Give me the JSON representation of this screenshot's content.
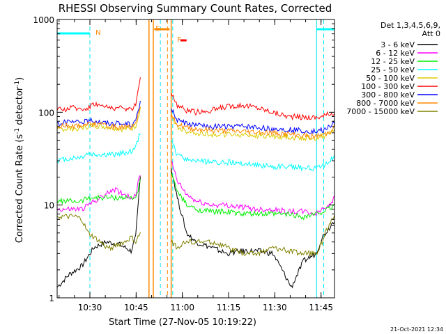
{
  "chart_data": {
    "type": "line",
    "title": "RHESSI Observing Summary Count Rates, Corrected",
    "ylabel_main": "Corrected Count Rate (s",
    "ylabel_sup1": "-1",
    "ylabel_mid": " detector",
    "ylabel_sup2": "-1",
    "ylabel_end": ")",
    "xlabel": "Start Time (27-Nov-05 10:19:22)",
    "yscale": "log",
    "ylim": [
      1,
      1000
    ],
    "xlim_minutes": [
      0,
      90
    ],
    "x_ticks": [
      {
        "label": "10:30",
        "value": 10.63
      },
      {
        "label": "10:45",
        "value": 25.63
      },
      {
        "label": "11:00",
        "value": 40.63
      },
      {
        "label": "11:15",
        "value": 55.63
      },
      {
        "label": "11:30",
        "value": 70.63
      },
      {
        "label": "11:45",
        "value": 85.63
      }
    ],
    "y_ticks": [
      {
        "label": "1",
        "value": 1
      },
      {
        "label": "10",
        "value": 10
      },
      {
        "label": "100",
        "value": 100
      },
      {
        "label": "1000",
        "value": 1000
      }
    ],
    "legend_header": [
      "Det 1,3,4,5,6,9,",
      "Att 0"
    ],
    "legend_placement": "right",
    "footer_date": "21-Oct-2021 12:34",
    "annotations": [
      {
        "label": "N",
        "x": 12.0,
        "color": "#ff8800"
      },
      {
        "label": "S",
        "x": 31.5,
        "color": "#ff8800"
      },
      {
        "label": "F",
        "x": 38.5,
        "color": "#ff8800"
      }
    ],
    "series": [
      {
        "name": "3 - 6 keV",
        "color": "#000000",
        "x": [
          0,
          4,
          8,
          12,
          16,
          20,
          24,
          25.5,
          27,
          29,
          31,
          33,
          35,
          37,
          39,
          42,
          45,
          50,
          55,
          60,
          65,
          70,
          73,
          76,
          80,
          84,
          86,
          88,
          90
        ],
        "y": [
          1.3,
          1.8,
          2.2,
          3.5,
          4.0,
          3.8,
          3.2,
          4.5,
          20,
          null,
          null,
          null,
          null,
          25,
          12,
          5,
          4,
          3.5,
          3,
          3.2,
          3.2,
          3.0,
          2.0,
          1.3,
          2.5,
          3.0,
          4.5,
          5.5,
          7.0
        ]
      },
      {
        "name": "6 - 12 keV",
        "color": "#ff00ff",
        "x": [
          0,
          4,
          8,
          12,
          14,
          16,
          18,
          20,
          22,
          24,
          25.5,
          27,
          29,
          31,
          33,
          35,
          37,
          39,
          42,
          45,
          50,
          55,
          60,
          65,
          70,
          75,
          80,
          84,
          86,
          88,
          90
        ],
        "y": [
          9,
          9,
          9,
          11,
          12,
          13,
          15,
          14,
          13,
          12,
          13,
          22,
          null,
          null,
          null,
          null,
          30,
          18,
          13,
          11,
          10,
          10,
          9.5,
          9,
          9,
          8.5,
          8.5,
          8,
          9,
          10,
          12
        ]
      },
      {
        "name": "12 - 25 keV",
        "color": "#00ee00",
        "x": [
          0,
          4,
          8,
          10,
          12,
          16,
          20,
          24,
          25.5,
          27,
          29,
          31,
          33,
          35,
          37,
          39,
          42,
          45,
          50,
          55,
          60,
          65,
          70,
          75,
          80,
          84,
          86,
          88,
          90
        ],
        "y": [
          11,
          11,
          11,
          12,
          12,
          12,
          12,
          12,
          12,
          18,
          null,
          null,
          null,
          null,
          22,
          14,
          10,
          9,
          8.5,
          8.5,
          8,
          8,
          8,
          8,
          7.5,
          8,
          8.5,
          9,
          10
        ]
      },
      {
        "name": "25 - 50 keV",
        "color": "#00ffff",
        "x": [
          0,
          2,
          5,
          8,
          10,
          12,
          15,
          18,
          21,
          24,
          25.5,
          27,
          29,
          31,
          33,
          35,
          37,
          39,
          42,
          45,
          50,
          55,
          60,
          65,
          70,
          75,
          80,
          84,
          86,
          88,
          90
        ],
        "y": [
          30,
          31,
          32,
          33,
          36,
          35,
          35,
          35,
          36,
          38,
          42,
          60,
          null,
          null,
          null,
          null,
          50,
          34,
          31,
          30,
          29,
          29,
          28,
          27,
          26,
          26,
          25,
          25,
          26,
          29,
          34
        ]
      },
      {
        "name": "50 - 100 keV",
        "color": "#ddcc00",
        "x": [
          0,
          2,
          4,
          6,
          8,
          10,
          12,
          15,
          18,
          21,
          24,
          25.5,
          27,
          29,
          31,
          33,
          35,
          37,
          39,
          42,
          45,
          50,
          55,
          60,
          65,
          70,
          75,
          80,
          84,
          86,
          88,
          90
        ],
        "y": [
          65,
          66,
          66,
          67,
          68,
          70,
          72,
          70,
          68,
          66,
          66,
          72,
          110,
          null,
          null,
          null,
          null,
          95,
          68,
          62,
          60,
          58,
          57,
          57,
          56,
          55,
          54,
          53,
          53,
          55,
          58,
          66
        ]
      },
      {
        "name": "100 - 300 keV",
        "color": "#ff0000",
        "x": [
          0,
          2,
          4,
          6,
          8,
          10,
          12,
          15,
          18,
          21,
          24,
          25.5,
          27,
          29,
          31,
          33,
          35,
          37,
          39,
          42,
          45,
          50,
          55,
          60,
          65,
          70,
          75,
          80,
          84,
          86,
          88,
          90
        ],
        "y": [
          105,
          108,
          110,
          112,
          108,
          112,
          125,
          115,
          112,
          110,
          108,
          120,
          250,
          null,
          null,
          null,
          null,
          160,
          120,
          105,
          100,
          105,
          115,
          120,
          112,
          100,
          90,
          88,
          88,
          90,
          95,
          100
        ]
      },
      {
        "name": "300 - 800 keV",
        "color": "#0000ff",
        "x": [
          0,
          2,
          4,
          6,
          8,
          10,
          12,
          15,
          18,
          21,
          24,
          25.5,
          27,
          29,
          31,
          33,
          35,
          37,
          39,
          42,
          45,
          50,
          55,
          60,
          65,
          70,
          75,
          80,
          84,
          86,
          88,
          90
        ],
        "y": [
          76,
          77,
          78,
          78,
          79,
          80,
          82,
          78,
          76,
          75,
          74,
          80,
          130,
          null,
          null,
          null,
          null,
          110,
          82,
          75,
          72,
          70,
          70,
          70,
          68,
          66,
          65,
          63,
          62,
          64,
          68,
          78
        ]
      },
      {
        "name": "800 - 7000 keV",
        "color": "#ff8800",
        "x": [
          0,
          2,
          4,
          6,
          8,
          10,
          12,
          15,
          18,
          21,
          24,
          25.5,
          27,
          29,
          31,
          33,
          35,
          37,
          39,
          42,
          45,
          50,
          55,
          60,
          65,
          70,
          75,
          80,
          84,
          86,
          88,
          90
        ],
        "y": [
          70,
          71,
          72,
          72,
          73,
          74,
          75,
          72,
          70,
          69,
          68,
          74,
          120,
          null,
          null,
          null,
          null,
          100,
          74,
          68,
          66,
          64,
          63,
          62,
          61,
          60,
          58,
          56,
          55,
          57,
          60,
          70
        ]
      },
      {
        "name": "7000 - 15000 keV",
        "color": "#808000",
        "x": [
          0,
          2,
          4,
          6,
          8,
          10,
          12,
          14,
          16,
          18,
          20,
          22,
          24,
          25.5,
          27,
          29,
          31,
          33,
          35,
          37,
          39,
          42,
          45,
          50,
          55,
          60,
          65,
          70,
          75,
          80,
          84,
          86,
          88,
          90
        ],
        "y": [
          7.5,
          7.5,
          7.5,
          7.5,
          7,
          5,
          4.5,
          4,
          3.5,
          3.5,
          3.8,
          4,
          4.5,
          4,
          5,
          null,
          null,
          null,
          null,
          4,
          3.5,
          4,
          4,
          4,
          3.5,
          3,
          3,
          3.5,
          3.2,
          3,
          3,
          4,
          6,
          7.5
        ]
      }
    ],
    "lines_teal_dashed_x": [
      10.63,
      33.5,
      37.5,
      86.5
    ],
    "lines_teal_solid_x": [
      84.2
    ],
    "lines_orange_solid_x": [
      29.8,
      31.2,
      37.0
    ],
    "lines_orange_dashed_x": [
      35.8
    ],
    "bars_top": [
      {
        "from": 0,
        "to": 10.6,
        "color": "#00ffff"
      },
      {
        "from": 84.2,
        "to": 90,
        "color": "#00ffff"
      },
      {
        "from": 31.5,
        "to": 36.5,
        "color": "#ff8800"
      },
      {
        "from": 40.0,
        "to": 42.0,
        "color": "#ff0000"
      }
    ]
  }
}
